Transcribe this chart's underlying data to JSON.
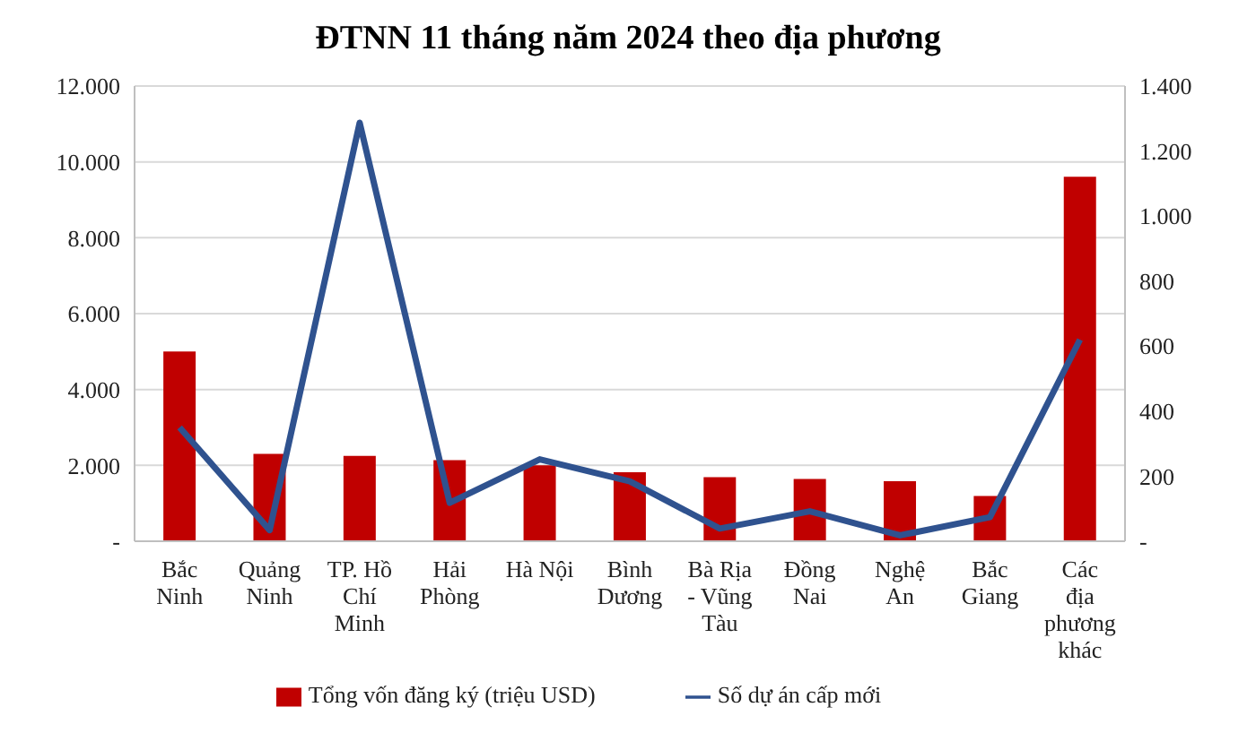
{
  "chart_data": {
    "type": "bar",
    "title": "ĐTNN 11 tháng năm 2024 theo địa phương",
    "categories": [
      "Bắc Ninh",
      "Quảng Ninh",
      "TP. Hồ Chí Minh",
      "Hải Phòng",
      "Hà Nội",
      "Bình Dương",
      "Bà Rịa - Vũng Tàu",
      "Đồng Nai",
      "Nghệ An",
      "Bắc Giang",
      "Các địa phương khác"
    ],
    "series": [
      {
        "name": "Tổng vốn đăng ký (triệu  USD)",
        "color": "#c00000",
        "values": [
          5000,
          2300,
          2250,
          2140,
          2000,
          1820,
          1690,
          1640,
          1580,
          1190,
          9610
        ]
      },
      {
        "name": "Số dự án cấp mới",
        "type": "line",
        "axis": "y2",
        "color": "#2f528f",
        "values": [
          350,
          34,
          1287,
          118,
          252,
          184,
          39,
          92,
          18,
          74,
          620
        ]
      }
    ],
    "ylim": [
      0,
      12000
    ],
    "yticks": [
      {
        "value": 0,
        "label": "-"
      },
      {
        "value": 2000,
        "label": "2.000"
      },
      {
        "value": 4000,
        "label": "4.000"
      },
      {
        "value": 6000,
        "label": "6.000"
      },
      {
        "value": 8000,
        "label": "8.000"
      },
      {
        "value": 10000,
        "label": "10.000"
      },
      {
        "value": 12000,
        "label": "12.000"
      }
    ],
    "y2lim": [
      0,
      1400
    ],
    "y2ticks": [
      {
        "value": 0,
        "label": "-"
      },
      {
        "value": 200,
        "label": "200"
      },
      {
        "value": 400,
        "label": "400"
      },
      {
        "value": 600,
        "label": "600"
      },
      {
        "value": 800,
        "label": "800"
      },
      {
        "value": 1000,
        "label": "1.000"
      },
      {
        "value": 1200,
        "label": "1.200"
      },
      {
        "value": 1400,
        "label": "1.400"
      }
    ],
    "grid": "y",
    "legend": "bottom",
    "marker": "none"
  }
}
